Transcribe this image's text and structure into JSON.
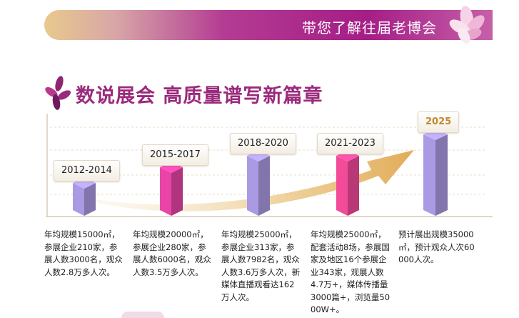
{
  "banner": {
    "title": "带您了解往届老博会"
  },
  "section": {
    "title": "数说展会 高质量谱写新篇章"
  },
  "timeline": [
    {
      "period": "2012-2014",
      "desc": "年均规模15000㎡，参展企业210家，参展人数3000名，观众人数2.8万多人次。",
      "color": "#9d8fd2",
      "highlight": false
    },
    {
      "period": "2015-2017",
      "desc": "年均规模20000㎡，参展企业280家，参展人数6000名，观众人数3.5万多人次。",
      "color": "#d8409b",
      "highlight": false
    },
    {
      "period": "2018-2020",
      "desc": "年均规模25000㎡，参展企业313家，参展人数7982名，观众人数3.6万多人次，新媒体直播观看达162万人次。",
      "color": "#9d8fd2",
      "highlight": false
    },
    {
      "period": "2021-2023",
      "desc": "年均规模25000㎡，配套活动8场，参展国家及地区16个参展企业343家，观展人数4.7万+，媒体传播量3000篇+，浏览量5000W+。",
      "color": "#e0458f",
      "highlight": false
    },
    {
      "period": "2025",
      "desc": "预计展出规模35000㎡，预计观众人次60000人次。",
      "color": "#9d8fd2",
      "highlight": true
    }
  ]
}
